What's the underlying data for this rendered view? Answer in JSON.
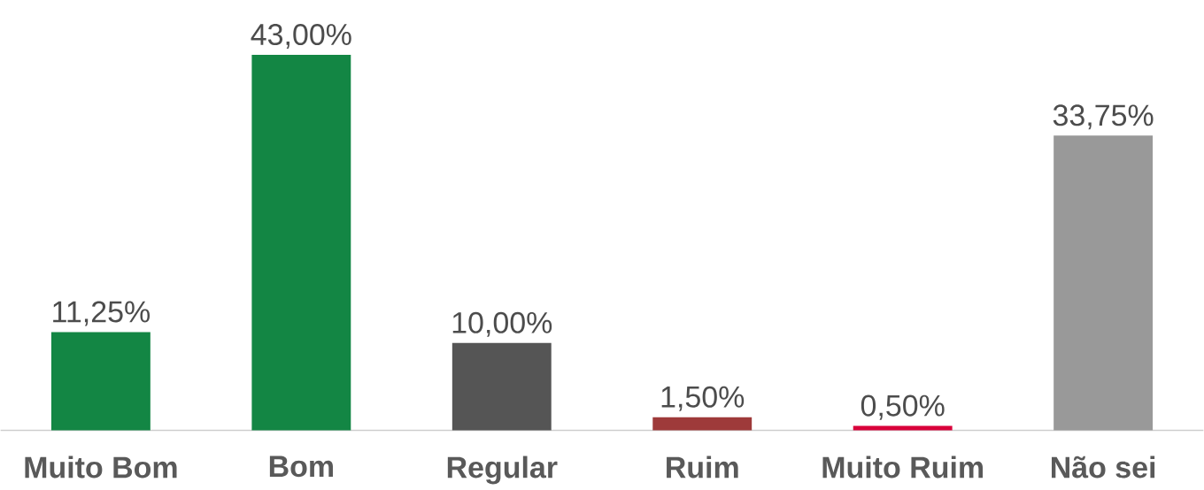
{
  "chart_data": {
    "type": "bar",
    "categories": [
      "Muito Bom",
      "Bom",
      "Regular",
      "Ruim",
      "Muito Ruim",
      "Não sei"
    ],
    "values": [
      11.25,
      43,
      10,
      1.5,
      0.5,
      33.75
    ],
    "colors": [
      "#138644",
      "#138644",
      "#555555",
      "#9e3a3a",
      "#d9003a",
      "#999999"
    ],
    "value_labels": [
      "11,25%",
      "43,00%",
      "10,00%",
      "1,50%",
      "0,50%",
      "33,75%"
    ]
  }
}
